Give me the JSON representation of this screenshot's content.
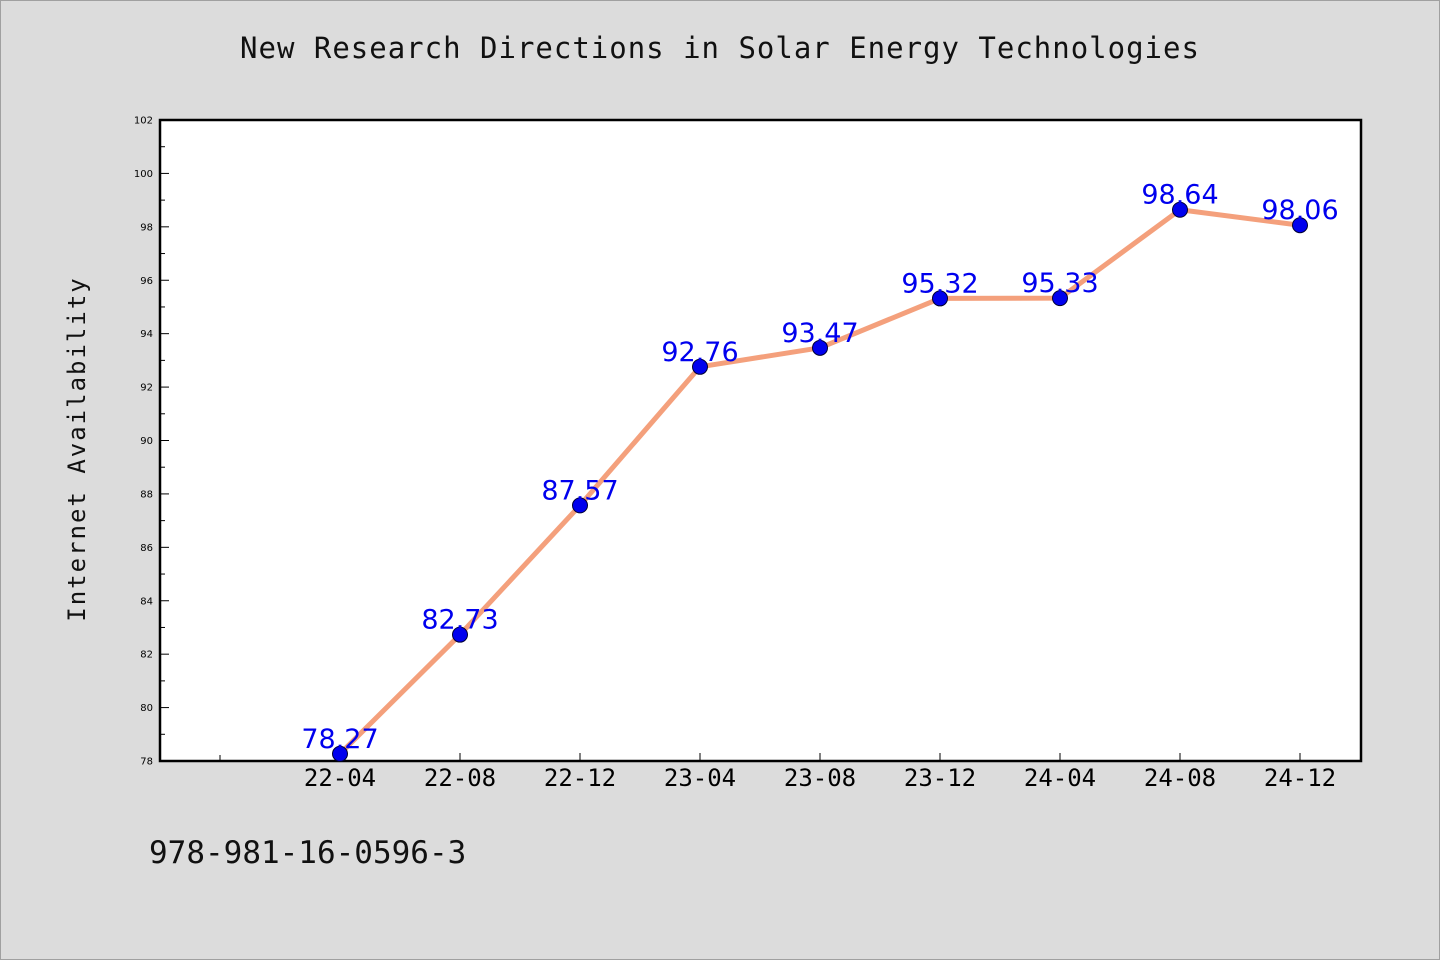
{
  "chart_data": {
    "type": "line",
    "title": "New Research Directions in Solar Energy Technologies",
    "xlabel": "",
    "ylabel": "Internet Availability",
    "categories": [
      "22-04",
      "22-08",
      "22-12",
      "23-04",
      "23-08",
      "23-12",
      "24-04",
      "24-08",
      "24-12"
    ],
    "series": [
      {
        "values": [
          78.27,
          82.73,
          87.57,
          92.76,
          93.47,
          95.32,
          95.33,
          98.64,
          98.06
        ]
      }
    ],
    "ylim": [
      78,
      102
    ],
    "yticks": [
      78,
      80,
      82,
      84,
      86,
      88,
      90,
      92,
      94,
      96,
      98,
      100,
      102
    ],
    "grid": false,
    "legend": "none",
    "line_color": "#f4a07c",
    "marker_color": "#0000ee",
    "label_color": "#0000ee"
  },
  "footer": {
    "isbn": "978-981-16-0596-3"
  }
}
